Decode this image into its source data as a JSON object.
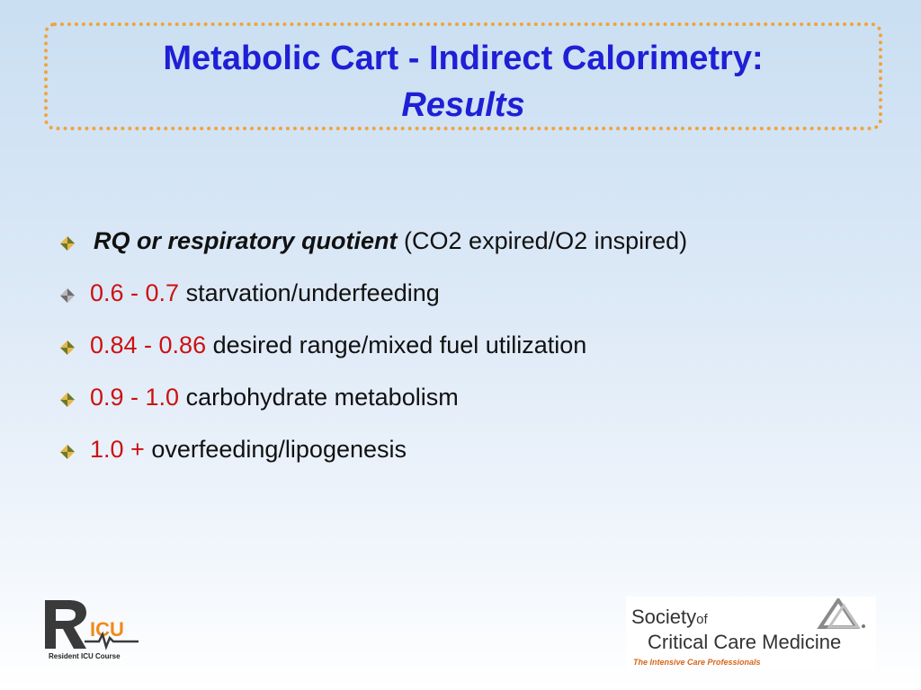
{
  "title": {
    "line1": "Metabolic Cart - Indirect Calorimetry:",
    "line2": "Results"
  },
  "bullets": [
    {
      "term": "RQ or respiratory quotient",
      "rest": " (CO2 expired/O2 inspired)"
    },
    {
      "range": "0.6 - 0.7",
      "rest": " starvation/underfeeding"
    },
    {
      "range": "0.84 - 0.86",
      "rest": " desired range/mixed fuel utilization"
    },
    {
      "range": "0.9 - 1.0",
      "rest": " carbohydrate metabolism"
    },
    {
      "range": "1.0 +",
      "rest": " overfeeding/lipogenesis"
    }
  ],
  "logos": {
    "ricu": {
      "wordmark": "RICU",
      "subtitle": "Resident ICU Course"
    },
    "sccm": {
      "society": "Society",
      "of": "of",
      "name": "Critical Care Medicine",
      "tagline": "The Intensive Care Professionals"
    }
  },
  "colors": {
    "title": "#1f1fd6",
    "range": "#cc1111",
    "title_border": "#f2a33a",
    "tagline": "#d4661a"
  },
  "icons": {
    "bullet": "diamond-bullet-icon"
  }
}
